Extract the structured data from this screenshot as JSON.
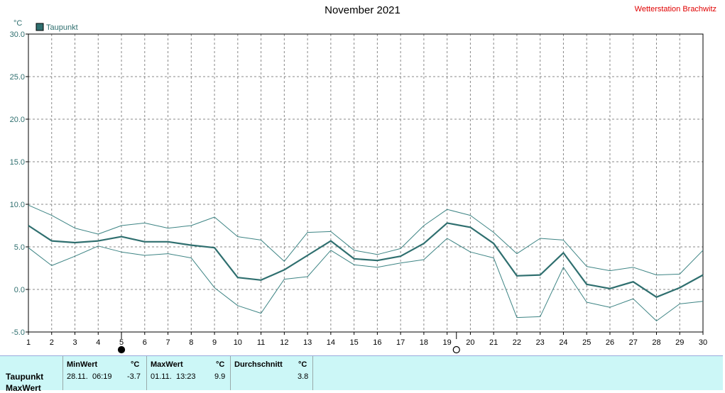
{
  "title": "November 2021",
  "station": "Wetterstation Brachwitz",
  "colors": {
    "series": "#2f6f6f",
    "band": "#3d8484",
    "grid": "#888888",
    "station": "#e00000",
    "summary_bg": "#ccf7f7"
  },
  "chart_data": {
    "type": "line",
    "unit_label": "°C",
    "legend": [
      "Taupunkt"
    ],
    "legend_placement": "top-left",
    "grid": true,
    "xlim": [
      1,
      30
    ],
    "ylim": [
      -5,
      30
    ],
    "x_ticks": [
      1,
      2,
      3,
      4,
      5,
      6,
      7,
      8,
      9,
      10,
      11,
      12,
      13,
      14,
      15,
      16,
      17,
      18,
      19,
      20,
      21,
      22,
      23,
      24,
      25,
      26,
      27,
      28,
      29,
      30
    ],
    "y_ticks": [
      "-5.0",
      "0.0",
      "5.0",
      "10.0",
      "15.0",
      "20.0",
      "25.0",
      "30.0"
    ],
    "y_tick_values": [
      -5,
      0,
      5,
      10,
      15,
      20,
      25,
      30
    ],
    "series": [
      {
        "name": "Taupunkt",
        "x": [
          1,
          2,
          3,
          4,
          5,
          6,
          7,
          8,
          9,
          10,
          11,
          12,
          13,
          14,
          15,
          16,
          17,
          18,
          19,
          20,
          21,
          22,
          23,
          24,
          25,
          26,
          27,
          28,
          29,
          30
        ],
        "values": [
          7.5,
          5.7,
          5.5,
          5.7,
          6.2,
          5.6,
          5.6,
          5.2,
          4.9,
          1.4,
          1.1,
          2.3,
          4.0,
          5.7,
          3.6,
          3.4,
          3.9,
          5.4,
          7.8,
          7.3,
          5.4,
          1.6,
          1.7,
          4.3,
          0.6,
          0.1,
          0.9,
          -0.9,
          0.2,
          1.7
        ]
      },
      {
        "name": "",
        "x": [
          1,
          2,
          3,
          4,
          5,
          6,
          7,
          8,
          9,
          10,
          11,
          12,
          13,
          14,
          15,
          16,
          17,
          18,
          19,
          20,
          21,
          22,
          23,
          24,
          25,
          26,
          27,
          28,
          29,
          30
        ],
        "values": [
          9.9,
          8.7,
          7.2,
          6.5,
          7.5,
          7.8,
          7.2,
          7.5,
          8.5,
          6.2,
          5.8,
          3.3,
          6.7,
          6.8,
          4.6,
          4.1,
          4.8,
          7.5,
          9.4,
          8.7,
          6.7,
          4.2,
          6.0,
          5.8,
          2.7,
          2.2,
          2.6,
          1.7,
          1.8,
          4.6
        ]
      },
      {
        "name": "",
        "x": [
          1,
          2,
          3,
          4,
          5,
          6,
          7,
          8,
          9,
          10,
          11,
          12,
          13,
          14,
          15,
          16,
          17,
          18,
          19,
          20,
          21,
          22,
          23,
          24,
          25,
          26,
          27,
          28,
          29,
          30
        ],
        "values": [
          4.9,
          2.8,
          3.9,
          5.1,
          4.4,
          4.0,
          4.2,
          3.7,
          0.2,
          -1.9,
          -2.8,
          1.2,
          1.5,
          4.6,
          2.9,
          2.6,
          3.1,
          3.5,
          6.0,
          4.4,
          3.7,
          -3.3,
          -3.2,
          2.6,
          -1.5,
          -2.1,
          -1.1,
          -3.7,
          -1.7,
          -1.4
        ]
      }
    ],
    "moon_phases": [
      {
        "x": 5,
        "phase": "new"
      },
      {
        "x": 19.4,
        "phase": "full"
      }
    ]
  },
  "summary": {
    "headers": {
      "min": "MinWert",
      "max": "MaxWert",
      "avg": "Durchschnitt",
      "unit": "°C"
    },
    "rows": [
      {
        "label": "Taupunkt",
        "min_date": "28.11.",
        "min_time": "06:19",
        "min_value": "-3.7",
        "max_date": "01.11.",
        "max_time": "13:23",
        "max_value": "9.9",
        "avg_value": "3.8"
      },
      {
        "label": "MaxWert"
      }
    ]
  }
}
